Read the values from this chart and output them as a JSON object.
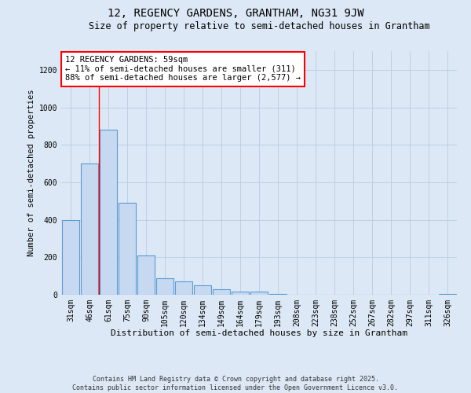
{
  "title": "12, REGENCY GARDENS, GRANTHAM, NG31 9JW",
  "subtitle": "Size of property relative to semi-detached houses in Grantham",
  "xlabel": "Distribution of semi-detached houses by size in Grantham",
  "ylabel": "Number of semi-detached properties",
  "categories": [
    "31sqm",
    "46sqm",
    "61sqm",
    "75sqm",
    "90sqm",
    "105sqm",
    "120sqm",
    "134sqm",
    "149sqm",
    "164sqm",
    "179sqm",
    "193sqm",
    "208sqm",
    "223sqm",
    "238sqm",
    "252sqm",
    "267sqm",
    "282sqm",
    "297sqm",
    "311sqm",
    "326sqm"
  ],
  "values": [
    400,
    700,
    880,
    490,
    210,
    90,
    70,
    50,
    30,
    15,
    15,
    5,
    0,
    0,
    0,
    0,
    0,
    0,
    0,
    0,
    5
  ],
  "bar_color": "#c6d9f0",
  "bar_edge_color": "#5b9bd5",
  "bar_edge_width": 0.8,
  "vline_x": 1.5,
  "vline_color": "red",
  "annotation_text": "12 REGENCY GARDENS: 59sqm\n← 11% of semi-detached houses are smaller (311)\n88% of semi-detached houses are larger (2,577) →",
  "annotation_box_color": "white",
  "annotation_box_edge_color": "red",
  "ylim": [
    0,
    1300
  ],
  "yticks": [
    0,
    200,
    400,
    600,
    800,
    1000,
    1200
  ],
  "background_color": "#dce8f5",
  "plot_bg_color": "#dce8f5",
  "footer": "Contains HM Land Registry data © Crown copyright and database right 2025.\nContains public sector information licensed under the Open Government Licence v3.0.",
  "title_fontsize": 10,
  "subtitle_fontsize": 8.5,
  "xlabel_fontsize": 8,
  "ylabel_fontsize": 7.5,
  "tick_fontsize": 7,
  "footer_fontsize": 6
}
